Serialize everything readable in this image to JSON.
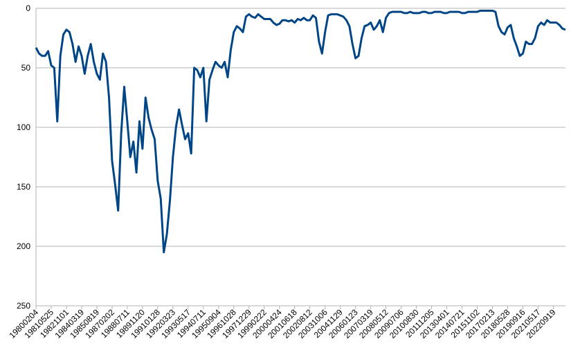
{
  "chart_data": {
    "type": "line",
    "categories": [
      "19800204",
      null,
      null,
      null,
      null,
      "19810525",
      null,
      null,
      null,
      null,
      "19821101",
      null,
      null,
      null,
      null,
      "19840319",
      null,
      null,
      null,
      null,
      "19850819",
      null,
      null,
      null,
      null,
      "19870202",
      null,
      null,
      null,
      null,
      "19880711",
      null,
      null,
      null,
      null,
      "19891120",
      null,
      null,
      null,
      null,
      "19910128",
      null,
      null,
      null,
      null,
      "19920323",
      null,
      null,
      null,
      null,
      "19930517",
      null,
      null,
      null,
      null,
      "19940711",
      null,
      null,
      null,
      null,
      "19950904",
      null,
      null,
      null,
      null,
      "19961028",
      null,
      null,
      null,
      null,
      "19971229",
      null,
      null,
      null,
      null,
      "19990222",
      null,
      null,
      null,
      null,
      "20000424",
      null,
      null,
      null,
      null,
      "20010618",
      null,
      null,
      null,
      null,
      "20020812",
      null,
      null,
      null,
      null,
      "20031006",
      null,
      null,
      null,
      null,
      "20041129",
      null,
      null,
      null,
      null,
      "20060123",
      null,
      null,
      null,
      null,
      "20070319",
      null,
      null,
      null,
      null,
      "20080512",
      null,
      null,
      null,
      null,
      "20090706",
      null,
      null,
      null,
      null,
      "20100830",
      null,
      null,
      null,
      null,
      "20111205",
      null,
      null,
      null,
      null,
      "20130401",
      null,
      null,
      null,
      null,
      "20140721",
      null,
      null,
      null,
      null,
      "20151102",
      null,
      null,
      null,
      null,
      "20170213",
      null,
      null,
      null,
      null,
      "20180528",
      null,
      null,
      null,
      null,
      "20190916",
      null,
      null,
      null,
      null,
      "20210517",
      null,
      null,
      null,
      null,
      "20220919",
      null,
      null,
      null,
      null
    ],
    "series": [
      {
        "color": "#004586",
        "values": [
          33,
          38,
          40,
          40,
          36,
          48,
          50,
          95,
          40,
          22,
          18,
          20,
          30,
          45,
          32,
          40,
          55,
          40,
          30,
          45,
          55,
          60,
          38,
          45,
          75,
          128,
          148,
          170,
          105,
          66,
          95,
          125,
          112,
          138,
          95,
          118,
          75,
          92,
          102,
          110,
          145,
          160,
          205,
          190,
          162,
          125,
          100,
          85,
          98,
          110,
          105,
          122,
          50,
          52,
          58,
          50,
          95,
          60,
          52,
          45,
          48,
          50,
          45,
          58,
          35,
          20,
          15,
          17,
          20,
          7,
          5,
          7,
          8,
          5,
          7,
          9,
          9,
          9,
          12,
          14,
          13,
          10,
          10,
          11,
          10,
          12,
          9,
          10,
          8,
          10,
          10,
          6,
          8,
          28,
          38,
          20,
          6,
          5,
          5,
          5,
          6,
          7,
          10,
          15,
          30,
          42,
          40,
          25,
          15,
          14,
          12,
          18,
          15,
          10,
          20,
          8,
          4,
          3,
          3,
          3,
          3,
          4,
          4,
          3,
          4,
          4,
          4,
          3,
          3,
          4,
          4,
          3,
          3,
          3,
          4,
          4,
          3,
          3,
          3,
          3,
          4,
          4,
          3,
          3,
          3,
          3,
          2,
          2,
          2,
          2,
          2,
          3,
          15,
          20,
          22,
          16,
          14,
          25,
          32,
          40,
          38,
          28,
          30,
          30,
          25,
          15,
          12,
          14,
          10,
          12,
          12,
          12,
          14,
          17,
          18
        ]
      }
    ],
    "ylim": [
      0,
      250
    ],
    "yticks": [
      0,
      50,
      100,
      150,
      200,
      250
    ],
    "y_inverted": true,
    "grid": true
  }
}
